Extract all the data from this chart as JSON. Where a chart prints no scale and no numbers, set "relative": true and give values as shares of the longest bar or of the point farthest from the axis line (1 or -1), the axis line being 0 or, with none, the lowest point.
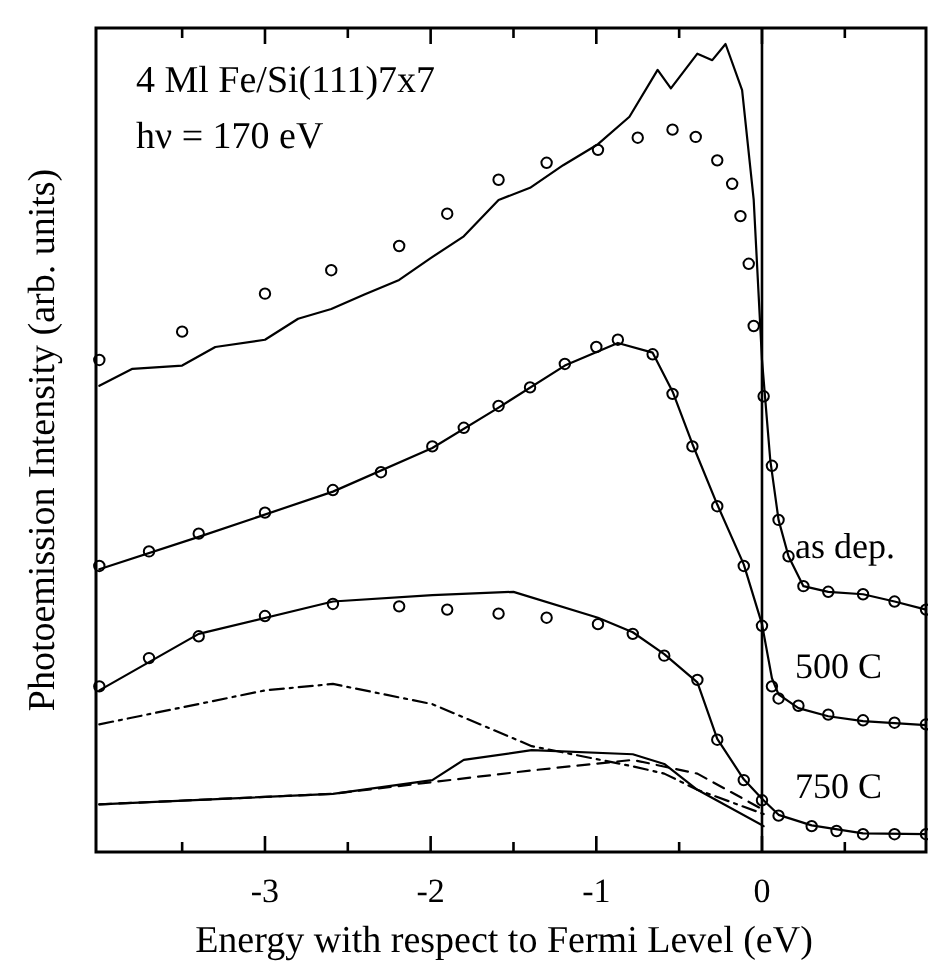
{
  "chart_data": {
    "type": "line",
    "relative": true,
    "xlabel": "Energy with respect to Fermi Level (eV)",
    "ylabel": "Photoemission Intensity (arb. units)",
    "annotations": [
      "4 Ml Fe/Si(111)7x7",
      "hν = 170 eV"
    ],
    "xlim": [
      -4.02,
      0.99
    ],
    "xticks": [
      {
        "value": -3.5,
        "label": null
      },
      -3,
      {
        "value": -2.5,
        "label": null
      },
      -2,
      {
        "value": -1.5,
        "label": null
      },
      -1,
      {
        "value": -0.5,
        "label": null
      },
      0,
      {
        "value": 0.5,
        "label": null
      }
    ],
    "ref_lines": [
      {
        "axis": "x",
        "value": 0,
        "color": "#000000",
        "line_style": "solid"
      }
    ],
    "grid": false,
    "series": [
      {
        "name": "as dep.",
        "type": "scatter",
        "marker": "circle",
        "color": "#000000",
        "x": [
          -4.0,
          -3.5,
          -3.0,
          -2.6,
          -2.19,
          -1.9,
          -1.59,
          -1.3,
          -0.99,
          -0.75,
          -0.54,
          -0.4,
          -0.27,
          -0.18,
          -0.13,
          -0.08,
          -0.05,
          0.01,
          0.06,
          0.1,
          0.16,
          0.25,
          0.4,
          0.61,
          0.8,
          0.99
        ],
        "values": [
          0.609,
          0.644,
          0.691,
          0.72,
          0.75,
          0.79,
          0.832,
          0.853,
          0.869,
          0.884,
          0.894,
          0.885,
          0.856,
          0.827,
          0.787,
          0.728,
          0.651,
          0.564,
          0.478,
          0.411,
          0.366,
          0.329,
          0.322,
          0.319,
          0.31,
          0.3
        ]
      },
      {
        "marker": "none",
        "line_style": "solid",
        "color": "#000000",
        "x": [
          -4.0,
          -3.8,
          -3.5,
          -3.3,
          -3.0,
          -2.8,
          -2.6,
          -2.4,
          -2.19,
          -2.0,
          -1.8,
          -1.59,
          -1.4,
          -1.2,
          -0.99,
          -0.8,
          -0.63,
          -0.55,
          -0.39,
          -0.3,
          -0.22,
          -0.12,
          -0.05,
          0.0,
          0.05,
          0.1,
          0.16,
          0.25,
          0.4,
          0.61,
          0.8,
          0.99
        ],
        "values": [
          0.577,
          0.598,
          0.602,
          0.625,
          0.634,
          0.66,
          0.672,
          0.69,
          0.708,
          0.735,
          0.762,
          0.807,
          0.822,
          0.85,
          0.876,
          0.91,
          0.968,
          0.945,
          0.988,
          0.98,
          1.0,
          0.943,
          0.807,
          0.609,
          0.485,
          0.411,
          0.366,
          0.329,
          0.322,
          0.319,
          0.31,
          0.3
        ]
      },
      {
        "name": "500 C",
        "type": "scatter",
        "marker": "circle",
        "color": "#000000",
        "x": [
          -4.0,
          -3.7,
          -3.4,
          -3.0,
          -2.59,
          -2.3,
          -1.99,
          -1.8,
          -1.59,
          -1.4,
          -1.19,
          -1.0,
          -0.87,
          -0.66,
          -0.54,
          -0.42,
          -0.27,
          -0.11,
          0.0,
          0.06,
          0.1,
          0.22,
          0.4,
          0.61,
          0.8,
          0.99
        ],
        "values": [
          0.354,
          0.372,
          0.394,
          0.42,
          0.448,
          0.47,
          0.502,
          0.525,
          0.552,
          0.575,
          0.604,
          0.625,
          0.634,
          0.616,
          0.567,
          0.502,
          0.428,
          0.354,
          0.28,
          0.205,
          0.19,
          0.181,
          0.17,
          0.163,
          0.16,
          0.158
        ]
      },
      {
        "marker": "none",
        "line_style": "solid",
        "color": "#000000",
        "x": [
          -4.0,
          -3.4,
          -2.59,
          -1.99,
          -1.59,
          -1.19,
          -0.87,
          -0.66,
          -0.54,
          -0.42,
          -0.27,
          -0.11,
          0.0,
          0.06,
          0.1,
          0.22,
          0.4,
          0.61,
          0.99
        ],
        "values": [
          0.35,
          0.39,
          0.446,
          0.5,
          0.55,
          0.602,
          0.63,
          0.618,
          0.57,
          0.505,
          0.43,
          0.356,
          0.282,
          0.215,
          0.195,
          0.178,
          0.168,
          0.162,
          0.157
        ]
      },
      {
        "name": "750 C",
        "type": "scatter",
        "marker": "circle",
        "color": "#000000",
        "x": [
          -4.0,
          -3.7,
          -3.4,
          -3.0,
          -2.59,
          -2.19,
          -1.9,
          -1.59,
          -1.3,
          -0.99,
          -0.78,
          -0.59,
          -0.39,
          -0.27,
          -0.11,
          0.0,
          0.1,
          0.3,
          0.45,
          0.61,
          0.8,
          0.99
        ],
        "values": [
          0.205,
          0.24,
          0.267,
          0.292,
          0.307,
          0.304,
          0.3,
          0.295,
          0.29,
          0.282,
          0.27,
          0.243,
          0.213,
          0.139,
          0.089,
          0.064,
          0.045,
          0.032,
          0.026,
          0.022,
          0.022,
          0.022
        ]
      },
      {
        "marker": "none",
        "line_style": "solid",
        "color": "#000000",
        "x": [
          -4.0,
          -3.4,
          -2.59,
          -1.99,
          -1.5,
          -0.99,
          -0.78,
          -0.59,
          -0.39,
          -0.27,
          -0.11,
          0.0,
          0.1,
          0.3,
          0.61,
          0.99
        ],
        "values": [
          0.2,
          0.27,
          0.31,
          0.318,
          0.322,
          0.29,
          0.272,
          0.245,
          0.21,
          0.14,
          0.09,
          0.066,
          0.046,
          0.033,
          0.023,
          0.022
        ]
      },
      {
        "marker": "none",
        "line_style": "dashdot",
        "color": "#000000",
        "x": [
          -4.0,
          -3.0,
          -2.59,
          -1.99,
          -1.39,
          -0.78,
          -0.59,
          -0.39,
          0.01
        ],
        "values": [
          0.158,
          0.2,
          0.208,
          0.183,
          0.131,
          0.106,
          0.097,
          0.077,
          0.047
        ]
      },
      {
        "marker": "none",
        "line_style": "dashed",
        "color": "#000000",
        "x": [
          -4.0,
          -2.59,
          -1.39,
          -0.78,
          -0.39,
          0.01
        ],
        "values": [
          0.059,
          0.072,
          0.101,
          0.114,
          0.097,
          0.052
        ]
      },
      {
        "marker": "none",
        "line_style": "solid",
        "color": "#000000",
        "x": [
          -4.0,
          -2.59,
          -1.99,
          -1.8,
          -1.39,
          -0.78,
          -0.59,
          -0.39,
          0.01
        ],
        "values": [
          0.059,
          0.072,
          0.089,
          0.114,
          0.126,
          0.121,
          0.109,
          0.077,
          0.032
        ]
      }
    ]
  }
}
